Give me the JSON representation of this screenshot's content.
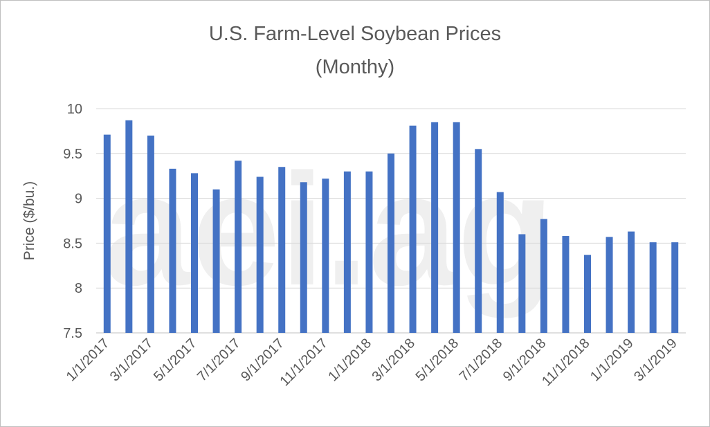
{
  "watermark": "aei.ag",
  "chart_data": {
    "type": "bar",
    "title": "U.S. Farm-Level Soybean Prices",
    "subtitle": "(Monthy)",
    "xlabel": "",
    "ylabel": "Price ($/bu.)",
    "ylim": [
      7.5,
      10
    ],
    "yticks": [
      "7.5",
      "8",
      "8.5",
      "9",
      "9.5",
      "10"
    ],
    "grid": true,
    "bar_color": "#4472c4",
    "categories": [
      "1/1/2017",
      "2/1/2017",
      "3/1/2017",
      "4/1/2017",
      "5/1/2017",
      "6/1/2017",
      "7/1/2017",
      "8/1/2017",
      "9/1/2017",
      "10/1/2017",
      "11/1/2017",
      "12/1/2017",
      "1/1/2018",
      "2/1/2018",
      "3/1/2018",
      "4/1/2018",
      "5/1/2018",
      "6/1/2018",
      "7/1/2018",
      "8/1/2018",
      "9/1/2018",
      "10/1/2018",
      "11/1/2018",
      "12/1/2018",
      "1/1/2019",
      "2/1/2019",
      "3/1/2019"
    ],
    "xtick_labels": [
      "1/1/2017",
      "3/1/2017",
      "5/1/2017",
      "7/1/2017",
      "9/1/2017",
      "11/1/2017",
      "1/1/2018",
      "3/1/2018",
      "5/1/2018",
      "7/1/2018",
      "9/1/2018",
      "11/1/2018",
      "1/1/2019",
      "3/1/2019"
    ],
    "values": [
      9.71,
      9.87,
      9.7,
      9.33,
      9.28,
      9.1,
      9.42,
      9.24,
      9.35,
      9.18,
      9.22,
      9.3,
      9.3,
      9.5,
      9.81,
      9.85,
      9.85,
      9.55,
      9.07,
      8.6,
      8.77,
      8.58,
      8.37,
      8.57,
      8.63,
      8.51,
      8.51
    ]
  }
}
